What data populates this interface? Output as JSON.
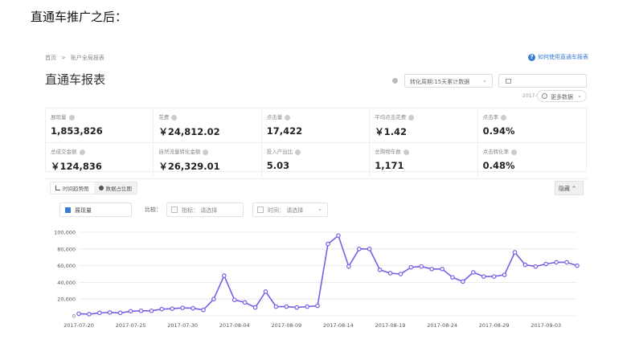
{
  "caption": "直通车推广之后：",
  "breadcrumb": {
    "home": "首页",
    "separator": ">",
    "current": "账户全局报表"
  },
  "help_link": "如何使用直通车报表",
  "page_title": "直通车报表",
  "conversion_select": "转化周期:15天累计数据",
  "date_range": "2017-07-2(",
  "more_data": "更多数据",
  "metrics": [
    {
      "label": "展现量",
      "value": "1,853,826"
    },
    {
      "label": "花费",
      "value": "￥24,812.02"
    },
    {
      "label": "点击量",
      "value": "17,422"
    },
    {
      "label": "平均点击花费",
      "value": "￥1.42"
    },
    {
      "label": "点击率",
      "value": "0.94%"
    },
    {
      "label": "总成交金额",
      "value": "￥124,836"
    },
    {
      "label": "自然流量转化金额",
      "value": "￥26,329.01"
    },
    {
      "label": "投入产出比",
      "value": "5.03"
    },
    {
      "label": "总购物车数",
      "value": "1,171"
    },
    {
      "label": "点击转化率",
      "value": "0.48%"
    }
  ],
  "tabs": [
    {
      "label": "时间趋势图"
    },
    {
      "label": "数据占比图"
    }
  ],
  "collapse_label": "隐藏 ^",
  "metric_select": "展现量",
  "compare_label": "比较：",
  "compare_indicator": "指标： 请选择",
  "compare_time": "时间： 请选择",
  "colors": {
    "line": "#7b5ce6",
    "accent": "#3a7bd5"
  },
  "chart_data": {
    "type": "line",
    "title": "",
    "xlabel": "",
    "ylabel": "",
    "ylim": [
      0,
      100000
    ],
    "yticks": [
      0,
      20000,
      40000,
      60000,
      80000,
      100000
    ],
    "ytick_labels": [
      "0",
      "20,000",
      "40,000",
      "60,000",
      "80,000",
      "100,000"
    ],
    "xtick_labels": [
      "2017-07-20",
      "2017-07-25",
      "2017-07-30",
      "2017-08-04",
      "2017-08-09",
      "2017-08-14",
      "2017-08-19",
      "2017-08-24",
      "2017-08-29",
      "2017-09-03"
    ],
    "xtick_index": [
      0,
      5,
      10,
      15,
      20,
      25,
      30,
      35,
      40,
      45
    ],
    "grid": true,
    "series": [
      {
        "values": [
          2500,
          2000,
          3500,
          4000,
          3500,
          5500,
          6000,
          6000,
          8000,
          8500,
          9500,
          9000,
          7000,
          20000,
          48000,
          19000,
          16000,
          10000,
          29000,
          11000,
          11000,
          10000,
          11000,
          12000,
          86000,
          96000,
          59000,
          80000,
          80000,
          55000,
          51000,
          50000,
          58000,
          59000,
          56000,
          56000,
          46000,
          41000,
          52000,
          47000,
          47000,
          49000,
          76000,
          61000,
          59000,
          62000,
          64000,
          64000,
          60000
        ]
      }
    ]
  }
}
